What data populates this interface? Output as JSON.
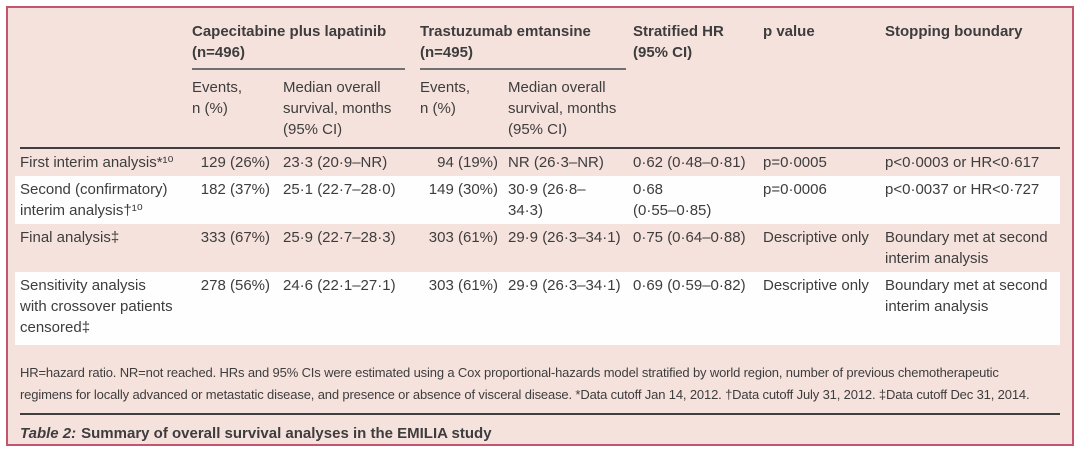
{
  "header": {
    "group1_title": "Capecitabine plus lapatinib\n(n=496)",
    "group2_title": "Trastuzumab emtansine\n(n=495)",
    "sub_events1": "Events,\nn (%)",
    "sub_median1": "Median overall\nsurvival, months\n(95% CI)",
    "sub_events2": "Events,\nn (%)",
    "sub_median2": "Median overall\nsurvival, months\n(95% CI)",
    "stratified_hr": "Stratified HR\n(95% CI)",
    "p_value": "p value",
    "stopping_boundary": "Stopping boundary"
  },
  "rows": [
    {
      "label": "First interim analysis*¹⁰",
      "cap_events": "129 (26%)",
      "cap_median": "23·3 (20·9–NR)",
      "tdm1_events": "94 (19%)",
      "tdm1_median": "NR (26·3–NR)",
      "hr": "0·62 (0·48–0·81)",
      "p": "p=0·0005",
      "stopping": "p<0·0003 or HR<0·617"
    },
    {
      "label": "Second (confirmatory)\ninterim analysis†¹⁰",
      "cap_events": "182 (37%)",
      "cap_median": "25·1 (22·7–28·0)",
      "tdm1_events": "149 (30%)",
      "tdm1_median": "30·9 (26·8–\n34·3)",
      "hr": "0·68\n(0·55–0·85)",
      "p": "p=0·0006",
      "stopping": "p<0·0037 or HR<0·727"
    },
    {
      "label": "Final analysis‡",
      "cap_events": "333 (67%)",
      "cap_median": "25·9 (22·7–28·3)",
      "tdm1_events": "303 (61%)",
      "tdm1_median": "29·9 (26·3–34·1)",
      "hr": "0·75 (0·64–0·88)",
      "p": "Descriptive only",
      "stopping": "Boundary met at second\ninterim analysis"
    },
    {
      "label": "Sensitivity analysis\nwith crossover patients\ncensored‡",
      "cap_events": "278 (56%)",
      "cap_median": "24·6 (22·1–27·1)",
      "tdm1_events": "303 (61%)",
      "tdm1_median": "29·9 (26·3–34·1)",
      "hr": "0·69 (0·59–0·82)",
      "p": "Descriptive only",
      "stopping": "Boundary met at second\ninterim analysis"
    }
  ],
  "footnote": "HR=hazard ratio. NR=not reached. HRs and 95% CIs were estimated using a Cox proportional-hazards model stratified by world region, number of previous chemotherapeutic\nregimens for locally advanced or metastatic disease, and presence or absence of visceral disease. *Data cutoff Jan 14, 2012. †Data cutoff July 31, 2012. ‡Data cutoff Dec 31, 2014.",
  "caption": {
    "prefix": "Table 2:",
    "text": "Summary of overall survival analyses in the EMILIA study"
  },
  "colors": {
    "frame_border": "#c25670",
    "band_pink": "#f6e2dd",
    "band_white": "#fffefe",
    "text": "#3d3d3d",
    "rule_dark": "#3f3f3f",
    "rule_group": "#707070"
  }
}
